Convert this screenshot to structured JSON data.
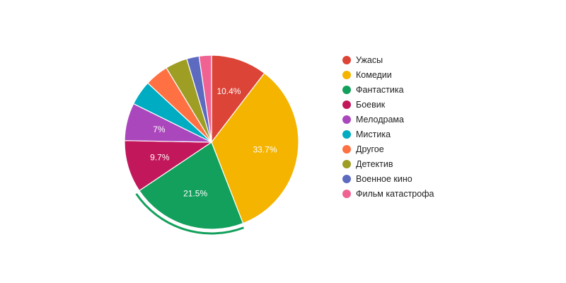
{
  "chart_data": {
    "type": "pie",
    "start_angle_deg": 0,
    "direction": "clockwise",
    "legend_position": "right",
    "highlighted_slice": "Фантастика",
    "slices": [
      {
        "label": "Ужасы",
        "value": 10.4,
        "color": "#dc4437",
        "display": "10.4%"
      },
      {
        "label": "Комедии",
        "value": 33.7,
        "color": "#f4b400",
        "display": "33.7%"
      },
      {
        "label": "Фантастика",
        "value": 21.5,
        "color": "#12a05c",
        "display": "21.5%"
      },
      {
        "label": "Боевик",
        "value": 9.7,
        "color": "#c2185b",
        "display": "9.7%"
      },
      {
        "label": "Мелодрама",
        "value": 7.0,
        "color": "#ab47bc",
        "display": "7%"
      },
      {
        "label": "Мистика",
        "value": 4.6,
        "color": "#00acc1",
        "display": ""
      },
      {
        "label": "Другое",
        "value": 4.4,
        "color": "#ff7043",
        "display": ""
      },
      {
        "label": "Детектив",
        "value": 4.1,
        "color": "#9e9d24",
        "display": ""
      },
      {
        "label": "Военное кино",
        "value": 2.3,
        "color": "#5c6bc0",
        "display": ""
      },
      {
        "label": "Фильм катастрофа",
        "value": 2.3,
        "color": "#f06292",
        "display": ""
      }
    ]
  }
}
